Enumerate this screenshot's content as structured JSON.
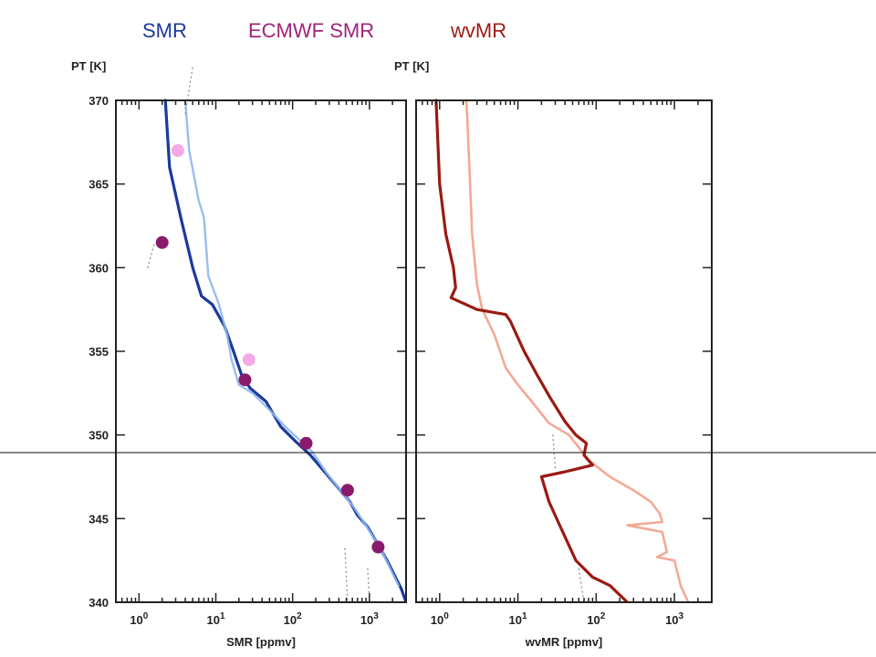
{
  "legend": [
    {
      "label": "SMR",
      "color": "#1a3a9c"
    },
    {
      "label": "ECMWF SMR",
      "color": "#a0247a"
    },
    {
      "label": "wvMR",
      "color": "#9a1a12"
    }
  ],
  "chart_data": [
    {
      "type": "line",
      "panel": "left",
      "ylabel": "PT [K]",
      "xlabel": "SMR [ppmv]",
      "xscale": "log",
      "xlim": [
        0.5,
        3000
      ],
      "ylim": [
        340,
        370
      ],
      "yticks": [
        "340",
        "345",
        "350",
        "355",
        "360",
        "365",
        "370"
      ],
      "xticks": [
        {
          "base": "10",
          "exp": "0"
        },
        {
          "base": "10",
          "exp": "1"
        },
        {
          "base": "10",
          "exp": "2"
        },
        {
          "base": "10",
          "exp": "3"
        }
      ],
      "series": [
        {
          "color": "#1a3a9c",
          "style": "thick",
          "points": [
            [
              2.2,
              370
            ],
            [
              2.5,
              366
            ],
            [
              3.5,
              363
            ],
            [
              5,
              360
            ],
            [
              6.5,
              358.3
            ],
            [
              9,
              357.8
            ],
            [
              13,
              356.5
            ],
            [
              17,
              355
            ],
            [
              22,
              353.5
            ],
            [
              28,
              352.8
            ],
            [
              45,
              352
            ],
            [
              70,
              350.5
            ],
            [
              110,
              349.6
            ],
            [
              170,
              348.8
            ],
            [
              260,
              347.8
            ],
            [
              400,
              346.8
            ],
            [
              560,
              346
            ],
            [
              700,
              345.2
            ],
            [
              950,
              344.5
            ],
            [
              1200,
              343.7
            ],
            [
              1700,
              342.5
            ],
            [
              2600,
              340.8
            ],
            [
              3000,
              340
            ]
          ]
        },
        {
          "color": "#8fb6f0",
          "style": "thin",
          "points": [
            [
              4,
              370
            ],
            [
              4.5,
              367
            ],
            [
              6,
              364
            ],
            [
              7,
              363
            ],
            [
              8,
              359.5
            ],
            [
              11,
              357.8
            ],
            [
              14,
              356
            ],
            [
              16,
              354.5
            ],
            [
              20,
              353
            ],
            [
              30,
              352.5
            ],
            [
              50,
              351.5
            ],
            [
              80,
              350.5
            ],
            [
              130,
              349.6
            ],
            [
              180,
              349
            ],
            [
              280,
              347.7
            ],
            [
              420,
              346.7
            ],
            [
              600,
              345.8
            ],
            [
              900,
              344.6
            ],
            [
              1400,
              343.2
            ],
            [
              2400,
              341
            ]
          ]
        },
        {
          "color": "#9a9a9a",
          "style": "dotted",
          "points": [
            [
              4,
              369.2
            ],
            [
              5,
              372
            ]
          ]
        },
        {
          "color": "#9a9a9a",
          "style": "dotted",
          "points": [
            [
              1.3,
              360
            ],
            [
              1.6,
              361.5
            ]
          ]
        },
        {
          "color": "#9a9a9a",
          "style": "dotted",
          "points": [
            [
              480,
              343.2
            ],
            [
              520,
              340
            ]
          ]
        },
        {
          "color": "#9a9a9a",
          "style": "dotted",
          "points": [
            [
              950,
              342
            ],
            [
              1000,
              340
            ]
          ]
        }
      ],
      "markers": [
        {
          "x": 3.2,
          "y": 367,
          "color": "#f5a8e6"
        },
        {
          "x": 2,
          "y": 361.5,
          "color": "#8a1a6a"
        },
        {
          "x": 27,
          "y": 354.5,
          "color": "#f5a8e6"
        },
        {
          "x": 24,
          "y": 353.3,
          "color": "#8a1a6a"
        },
        {
          "x": 150,
          "y": 349.5,
          "color": "#8a1a6a"
        },
        {
          "x": 520,
          "y": 346.7,
          "color": "#8a1a6a"
        },
        {
          "x": 1300,
          "y": 343.3,
          "color": "#8a1a6a"
        }
      ]
    },
    {
      "type": "line",
      "panel": "right",
      "ylabel": "PT [K]",
      "xlabel": "wvMR [ppmv]",
      "xscale": "log",
      "xlim": [
        0.5,
        3000
      ],
      "ylim": [
        340,
        370
      ],
      "yticks": [],
      "xticks": [
        {
          "base": "10",
          "exp": "0"
        },
        {
          "base": "10",
          "exp": "1"
        },
        {
          "base": "10",
          "exp": "2"
        },
        {
          "base": "10",
          "exp": "3"
        }
      ],
      "series": [
        {
          "color": "#f2a48f",
          "style": "medium",
          "points": [
            [
              2.2,
              370
            ],
            [
              2.4,
              366
            ],
            [
              2.6,
              362
            ],
            [
              3,
              359
            ],
            [
              3.5,
              357.5
            ],
            [
              5,
              356
            ],
            [
              7,
              354
            ],
            [
              10,
              353
            ],
            [
              15,
              352
            ],
            [
              25,
              350.7
            ],
            [
              45,
              350
            ],
            [
              80,
              348.5
            ],
            [
              150,
              347.5
            ],
            [
              300,
              346.7
            ],
            [
              500,
              346
            ],
            [
              650,
              345.3
            ],
            [
              700,
              344.8
            ],
            [
              250,
              344.6
            ],
            [
              700,
              344.2
            ],
            [
              800,
              343
            ],
            [
              600,
              342.7
            ],
            [
              1000,
              342.5
            ],
            [
              1200,
              341
            ],
            [
              1500,
              340
            ]
          ]
        },
        {
          "color": "#9a1a12",
          "style": "thick",
          "points": [
            [
              0.9,
              370
            ],
            [
              1,
              365
            ],
            [
              1.2,
              362
            ],
            [
              1.5,
              360
            ],
            [
              1.6,
              358.8
            ],
            [
              1.4,
              358.2
            ],
            [
              3,
              357.5
            ],
            [
              7,
              357.2
            ],
            [
              8,
              356.8
            ],
            [
              12,
              355
            ],
            [
              18,
              353.5
            ],
            [
              26,
              352.2
            ],
            [
              40,
              350.8
            ],
            [
              55,
              350
            ],
            [
              75,
              349.5
            ],
            [
              70,
              348.8
            ],
            [
              90,
              348.2
            ],
            [
              40,
              347.8
            ],
            [
              20,
              347.5
            ],
            [
              25,
              346
            ],
            [
              35,
              344.5
            ],
            [
              55,
              342.5
            ],
            [
              90,
              341.5
            ],
            [
              150,
              341
            ],
            [
              250,
              340
            ]
          ]
        },
        {
          "color": "#9a9a9a",
          "style": "dotted",
          "points": [
            [
              28,
              350
            ],
            [
              30,
              348
            ]
          ]
        },
        {
          "color": "#9a9a9a",
          "style": "dotted",
          "points": [
            [
              60,
              342
            ],
            [
              70,
              340
            ]
          ]
        }
      ],
      "markers": []
    }
  ]
}
